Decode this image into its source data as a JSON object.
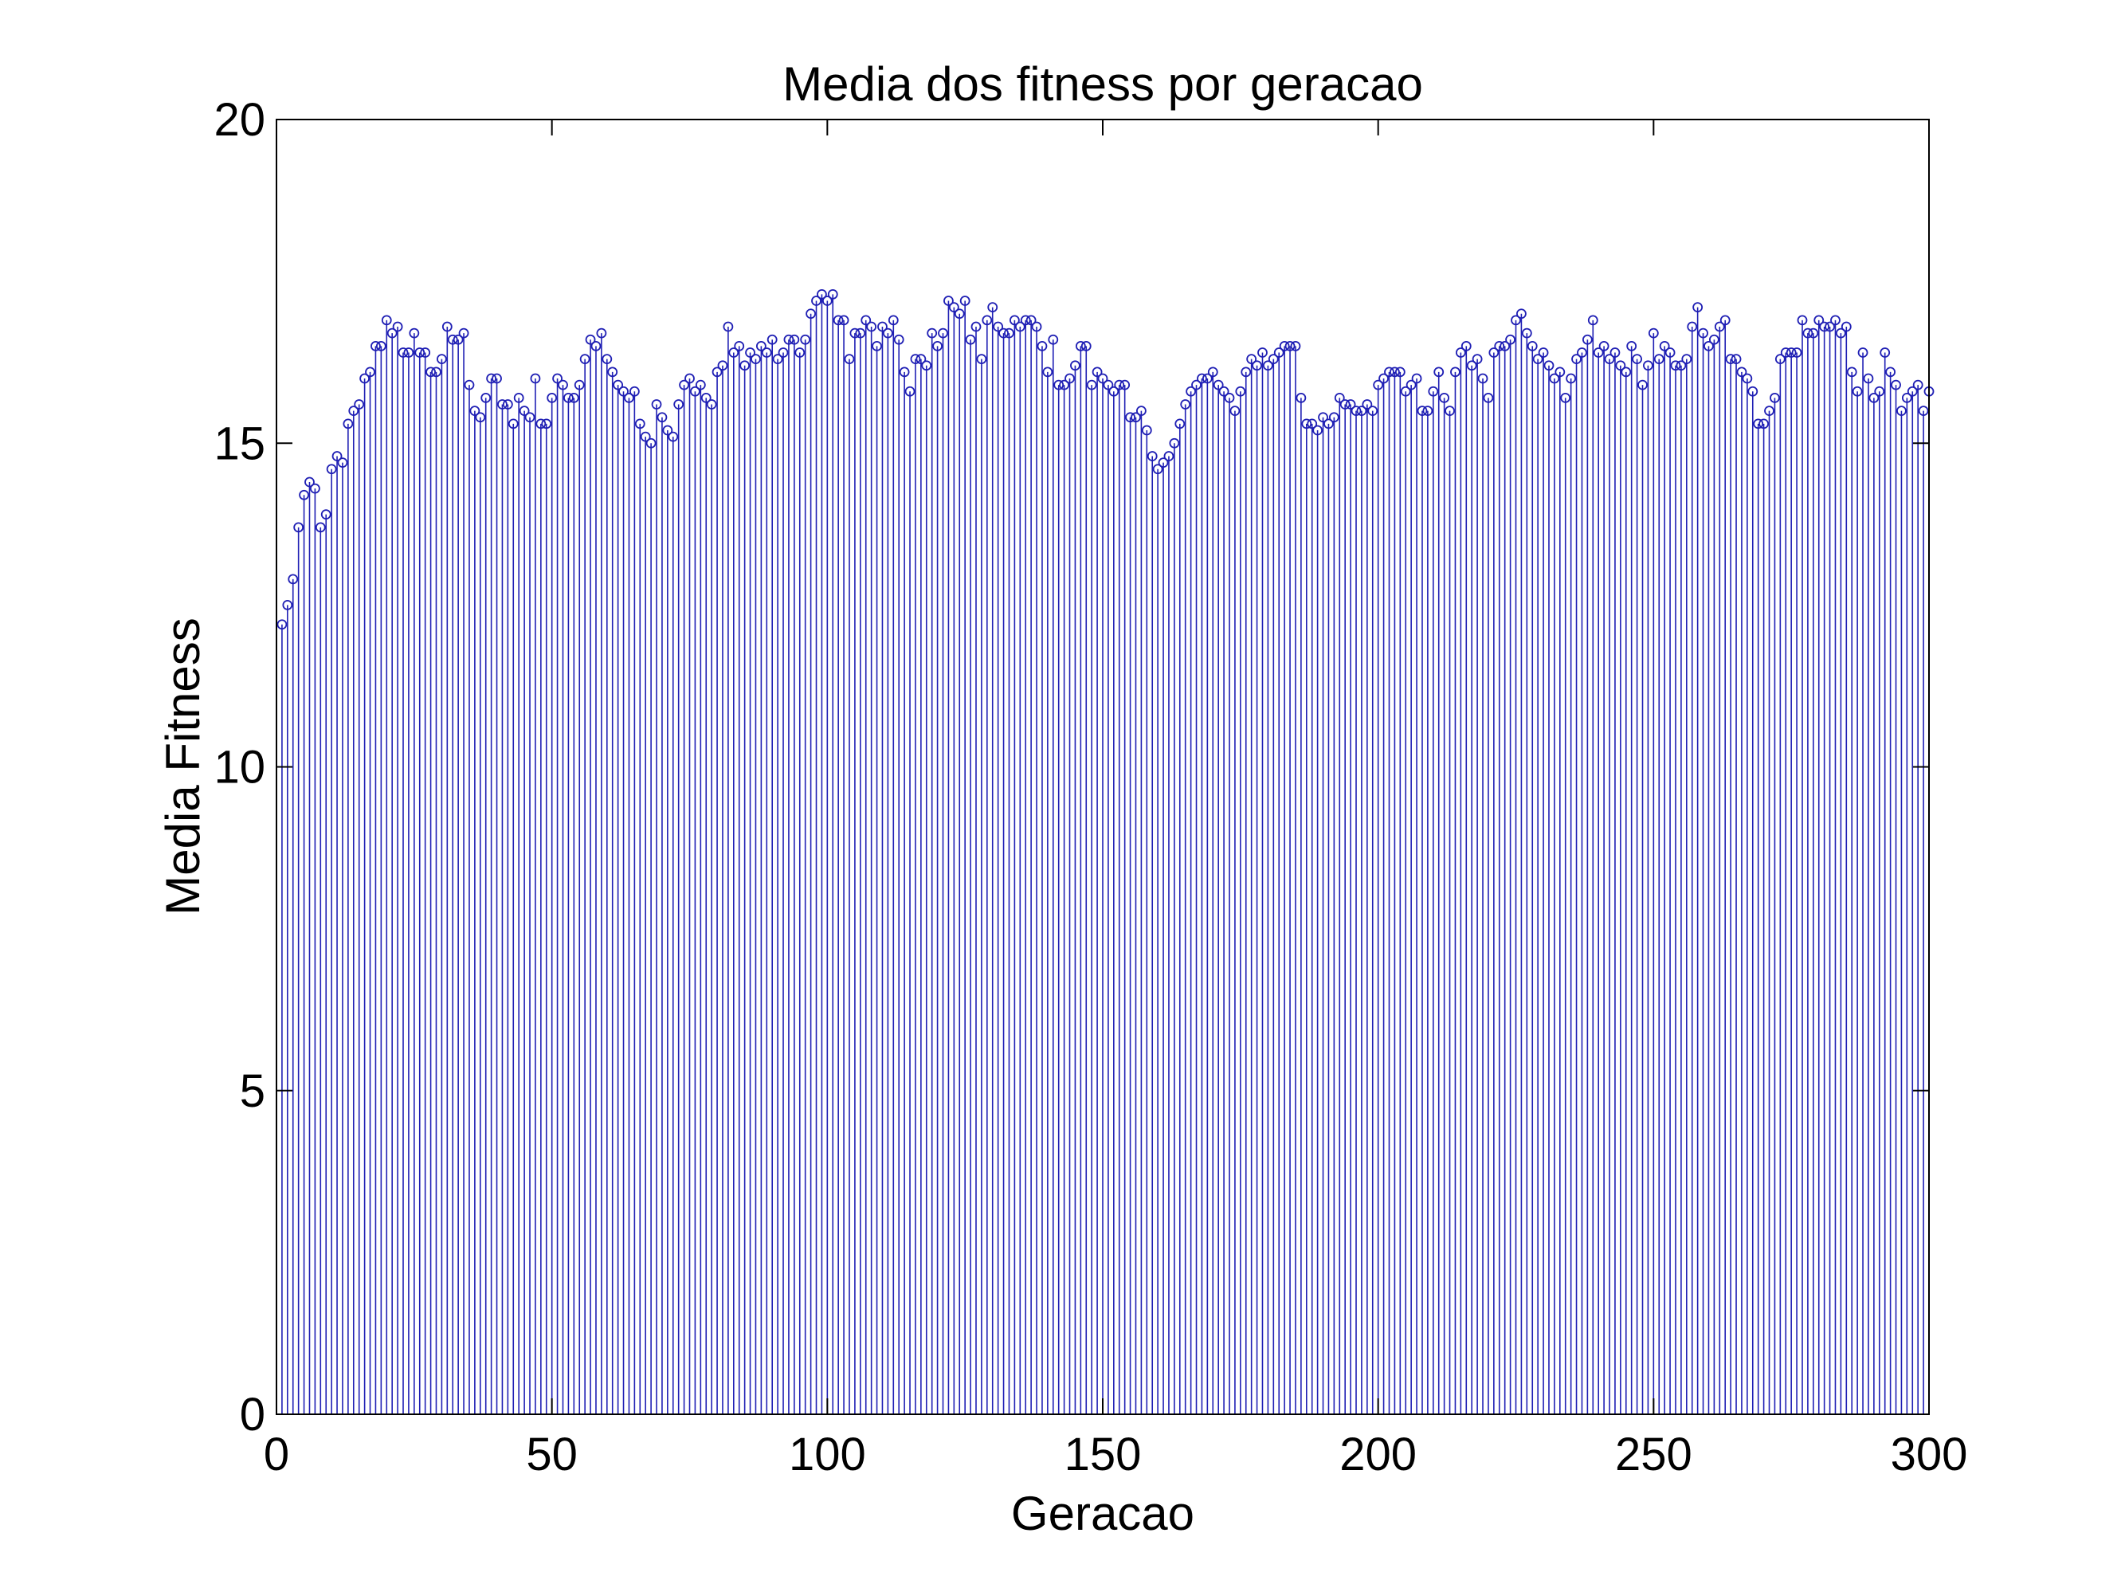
{
  "chart_data": {
    "type": "stem",
    "title": "Media dos fitness por geracao",
    "xlabel": "Geracao",
    "ylabel": "Media Fitness",
    "xlim": [
      0,
      300
    ],
    "ylim": [
      0,
      20
    ],
    "xticks": [
      "0",
      "50",
      "100",
      "150",
      "200",
      "250",
      "300"
    ],
    "yticks": [
      "0",
      "5",
      "10",
      "15",
      "20"
    ],
    "grid": false,
    "marker": "circle",
    "color": "#1f1fb4",
    "x_start": 1,
    "x_end": 300,
    "series": [
      {
        "values": [
          12.2,
          12.5,
          12.9,
          13.7,
          14.2,
          14.4,
          14.3,
          13.7,
          13.9,
          14.6,
          14.8,
          14.7,
          15.3,
          15.5,
          15.6,
          16.0,
          16.1,
          16.5,
          16.5,
          16.9,
          16.7,
          16.8,
          16.4,
          16.4,
          16.7,
          16.4,
          16.4,
          16.1,
          16.1,
          16.3,
          16.8,
          16.6,
          16.6,
          16.7,
          15.9,
          15.5,
          15.4,
          15.7,
          16.0,
          16.0,
          15.6,
          15.6,
          15.3,
          15.7,
          15.5,
          15.4,
          16.0,
          15.3,
          15.3,
          15.7,
          16.0,
          15.9,
          15.7,
          15.7,
          15.9,
          16.3,
          16.6,
          16.5,
          16.7,
          16.3,
          16.1,
          15.9,
          15.8,
          15.7,
          15.8,
          15.3,
          15.1,
          15.0,
          15.6,
          15.4,
          15.2,
          15.1,
          15.6,
          15.9,
          16.0,
          15.8,
          15.9,
          15.7,
          15.6,
          16.1,
          16.2,
          16.8,
          16.4,
          16.5,
          16.2,
          16.4,
          16.3,
          16.5,
          16.4,
          16.6,
          16.3,
          16.4,
          16.6,
          16.6,
          16.4,
          16.6,
          17.0,
          17.2,
          17.3,
          17.2,
          17.3,
          16.9,
          16.9,
          16.3,
          16.7,
          16.7,
          16.9,
          16.8,
          16.5,
          16.8,
          16.7,
          16.9,
          16.6,
          16.1,
          15.8,
          16.3,
          16.3,
          16.2,
          16.7,
          16.5,
          16.7,
          17.2,
          17.1,
          17.0,
          17.2,
          16.6,
          16.8,
          16.3,
          16.9,
          17.1,
          16.8,
          16.7,
          16.7,
          16.9,
          16.8,
          16.9,
          16.9,
          16.8,
          16.5,
          16.1,
          16.6,
          15.9,
          15.9,
          16.0,
          16.2,
          16.5,
          16.5,
          15.9,
          16.1,
          16.0,
          15.9,
          15.8,
          15.9,
          15.9,
          15.4,
          15.4,
          15.5,
          15.2,
          14.8,
          14.6,
          14.7,
          14.8,
          15.0,
          15.3,
          15.6,
          15.8,
          15.9,
          16.0,
          16.0,
          16.1,
          15.9,
          15.8,
          15.7,
          15.5,
          15.8,
          16.1,
          16.3,
          16.2,
          16.4,
          16.2,
          16.3,
          16.4,
          16.5,
          16.5,
          16.5,
          15.7,
          15.3,
          15.3,
          15.2,
          15.4,
          15.3,
          15.4,
          15.7,
          15.6,
          15.6,
          15.5,
          15.5,
          15.6,
          15.5,
          15.9,
          16.0,
          16.1,
          16.1,
          16.1,
          15.8,
          15.9,
          16.0,
          15.5,
          15.5,
          15.8,
          16.1,
          15.7,
          15.5,
          16.1,
          16.4,
          16.5,
          16.2,
          16.3,
          16.0,
          15.7,
          16.4,
          16.5,
          16.5,
          16.6,
          16.9,
          17.0,
          16.7,
          16.5,
          16.3,
          16.4,
          16.2,
          16.0,
          16.1,
          15.7,
          16.0,
          16.3,
          16.4,
          16.6,
          16.9,
          16.4,
          16.5,
          16.3,
          16.4,
          16.2,
          16.1,
          16.5,
          16.3,
          15.9,
          16.2,
          16.7,
          16.3,
          16.5,
          16.4,
          16.2,
          16.2,
          16.3,
          16.8,
          17.1,
          16.7,
          16.5,
          16.6,
          16.8,
          16.9,
          16.3,
          16.3,
          16.1,
          16.0,
          15.8,
          15.3,
          15.3,
          15.5,
          15.7,
          16.3,
          16.4,
          16.4,
          16.4,
          16.9,
          16.7,
          16.7,
          16.9,
          16.8,
          16.8,
          16.9,
          16.7,
          16.8,
          16.1,
          15.8,
          16.4,
          16.0,
          15.7,
          15.8,
          16.4,
          16.1,
          15.9,
          15.5,
          15.7,
          15.8,
          15.9,
          15.5,
          15.8
        ]
      }
    ]
  }
}
